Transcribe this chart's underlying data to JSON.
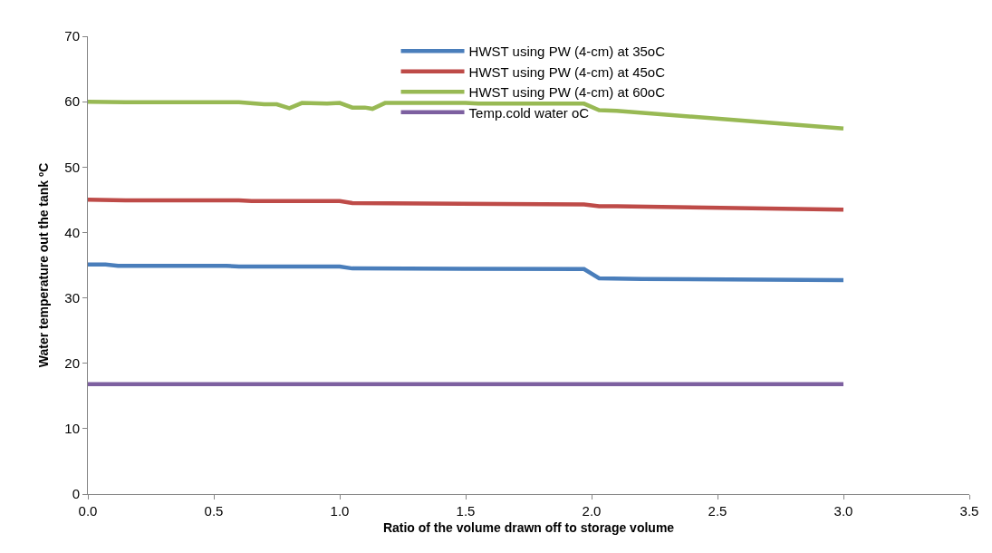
{
  "chart_data": {
    "type": "line",
    "xlabel": "Ratio of the volume drawn off to storage volume",
    "ylabel": "Water temperature out the tank ºC",
    "xlim": [
      0,
      3.5
    ],
    "xticks": [
      {
        "value": 0,
        "label": "0.0"
      },
      {
        "value": 0.5,
        "label": "0.5"
      },
      {
        "value": 1,
        "label": "1.0"
      },
      {
        "value": 1.5,
        "label": "1.5"
      },
      {
        "value": 2,
        "label": "2.0"
      },
      {
        "value": 2.5,
        "label": "2.5"
      },
      {
        "value": 3,
        "label": "3.0"
      },
      {
        "value": 3.5,
        "label": "3.5"
      }
    ],
    "ylim": [
      0,
      70
    ],
    "yticks": [
      0,
      10,
      20,
      30,
      40,
      50,
      60,
      70
    ],
    "grid": false,
    "legend": "top",
    "marker": "none",
    "line_style": "solid",
    "series": [
      {
        "name": "HWST using PW (4-cm) at 35oC",
        "color": "#4a7ebb",
        "x": [
          0,
          0.07,
          0.12,
          0.55,
          0.6,
          1,
          1.05,
          1.97,
          2.03,
          2.2,
          3
        ],
        "values": [
          35.1,
          35.1,
          34.9,
          34.9,
          34.8,
          34.8,
          34.5,
          34.4,
          33,
          32.9,
          32.7
        ]
      },
      {
        "name": "HWST using PW (4-cm) at 45oC",
        "color": "#be4b48",
        "x": [
          0,
          0.15,
          0.6,
          0.65,
          1,
          1.05,
          1.97,
          2.03,
          2.1,
          3
        ],
        "values": [
          45,
          44.9,
          44.9,
          44.8,
          44.8,
          44.5,
          44.3,
          44,
          44,
          43.5
        ]
      },
      {
        "name": "HWST using PW (4-cm) at 60oC",
        "color": "#98b954",
        "x": [
          0,
          0.15,
          0.6,
          0.7,
          0.75,
          0.8,
          0.85,
          0.95,
          1,
          1.05,
          1.1,
          1.13,
          1.18,
          1.5,
          1.55,
          1.97,
          2.03,
          2.1,
          3
        ],
        "values": [
          60,
          59.9,
          59.9,
          59.6,
          59.6,
          59,
          59.8,
          59.7,
          59.8,
          59.1,
          59.1,
          58.9,
          59.8,
          59.8,
          59.7,
          59.7,
          58.7,
          58.6,
          55.9
        ]
      },
      {
        "name": "Temp.cold water oC",
        "color": "#7d60a0",
        "x": [
          0,
          3
        ],
        "values": [
          16.8,
          16.8
        ]
      }
    ]
  }
}
